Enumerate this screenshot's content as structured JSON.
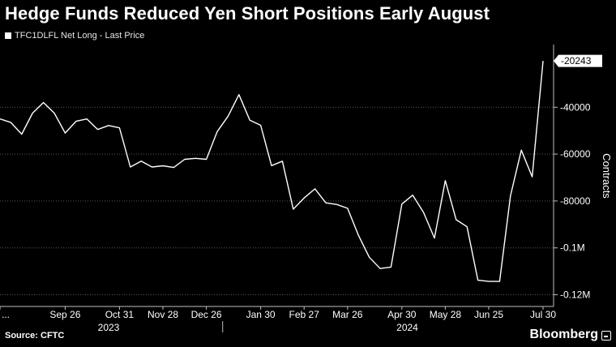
{
  "title": "Hedge Funds Reduced Yen Short Positions Early August",
  "legend": {
    "label": "TFC1DLFL Net Long - Last Price",
    "color": "#ffffff"
  },
  "source": "Source: CFTC",
  "brand": "Bloomberg",
  "chart_data": {
    "type": "line",
    "ylabel": "Contracts",
    "ylim": [
      -125000,
      -15000
    ],
    "yticks": [
      {
        "value": -40000,
        "label": "-40000"
      },
      {
        "value": -60000,
        "label": "-60000"
      },
      {
        "value": -80000,
        "label": "-80000"
      },
      {
        "value": -100000,
        "label": "-0.1M"
      },
      {
        "value": -120000,
        "label": "-0.12M"
      }
    ],
    "last_value_label": "-20243",
    "xlim": [
      0,
      58
    ],
    "xticks": [
      {
        "pos": 0,
        "label": "..."
      },
      {
        "pos": 6,
        "label": "Sep 26"
      },
      {
        "pos": 11,
        "label": "Oct 31"
      },
      {
        "pos": 15,
        "label": "Nov 28"
      },
      {
        "pos": 19,
        "label": "Dec 26"
      },
      {
        "pos": 24,
        "label": "Jan 30"
      },
      {
        "pos": 28,
        "label": "Feb 27"
      },
      {
        "pos": 32,
        "label": "Mar 26"
      },
      {
        "pos": 37,
        "label": "Apr 30"
      },
      {
        "pos": 41,
        "label": "May 28"
      },
      {
        "pos": 45,
        "label": "Jun 25"
      },
      {
        "pos": 50,
        "label": "Jul 30"
      }
    ],
    "year_labels": [
      {
        "pos": 10,
        "label": "2023"
      },
      {
        "pos": 37.5,
        "label": "2024"
      }
    ],
    "year_divider_pos": 20.5,
    "series": [
      {
        "color": "#ffffff",
        "values": [
          -45000,
          -46500,
          -51500,
          -42500,
          -38000,
          -42500,
          -51000,
          -46000,
          -45000,
          -49500,
          -47800,
          -48800,
          -65500,
          -63000,
          -65500,
          -65000,
          -65700,
          -62200,
          -61800,
          -62200,
          -50400,
          -43800,
          -34600,
          -45500,
          -47700,
          -64900,
          -63000,
          -83500,
          -78700,
          -74800,
          -80800,
          -81500,
          -83100,
          -94600,
          -104000,
          -108800,
          -108200,
          -81300,
          -77500,
          -84900,
          -95800,
          -71300,
          -88000,
          -91000,
          -113800,
          -114300,
          -114300,
          -77800,
          -58300,
          -69700,
          -20243
        ]
      }
    ]
  }
}
